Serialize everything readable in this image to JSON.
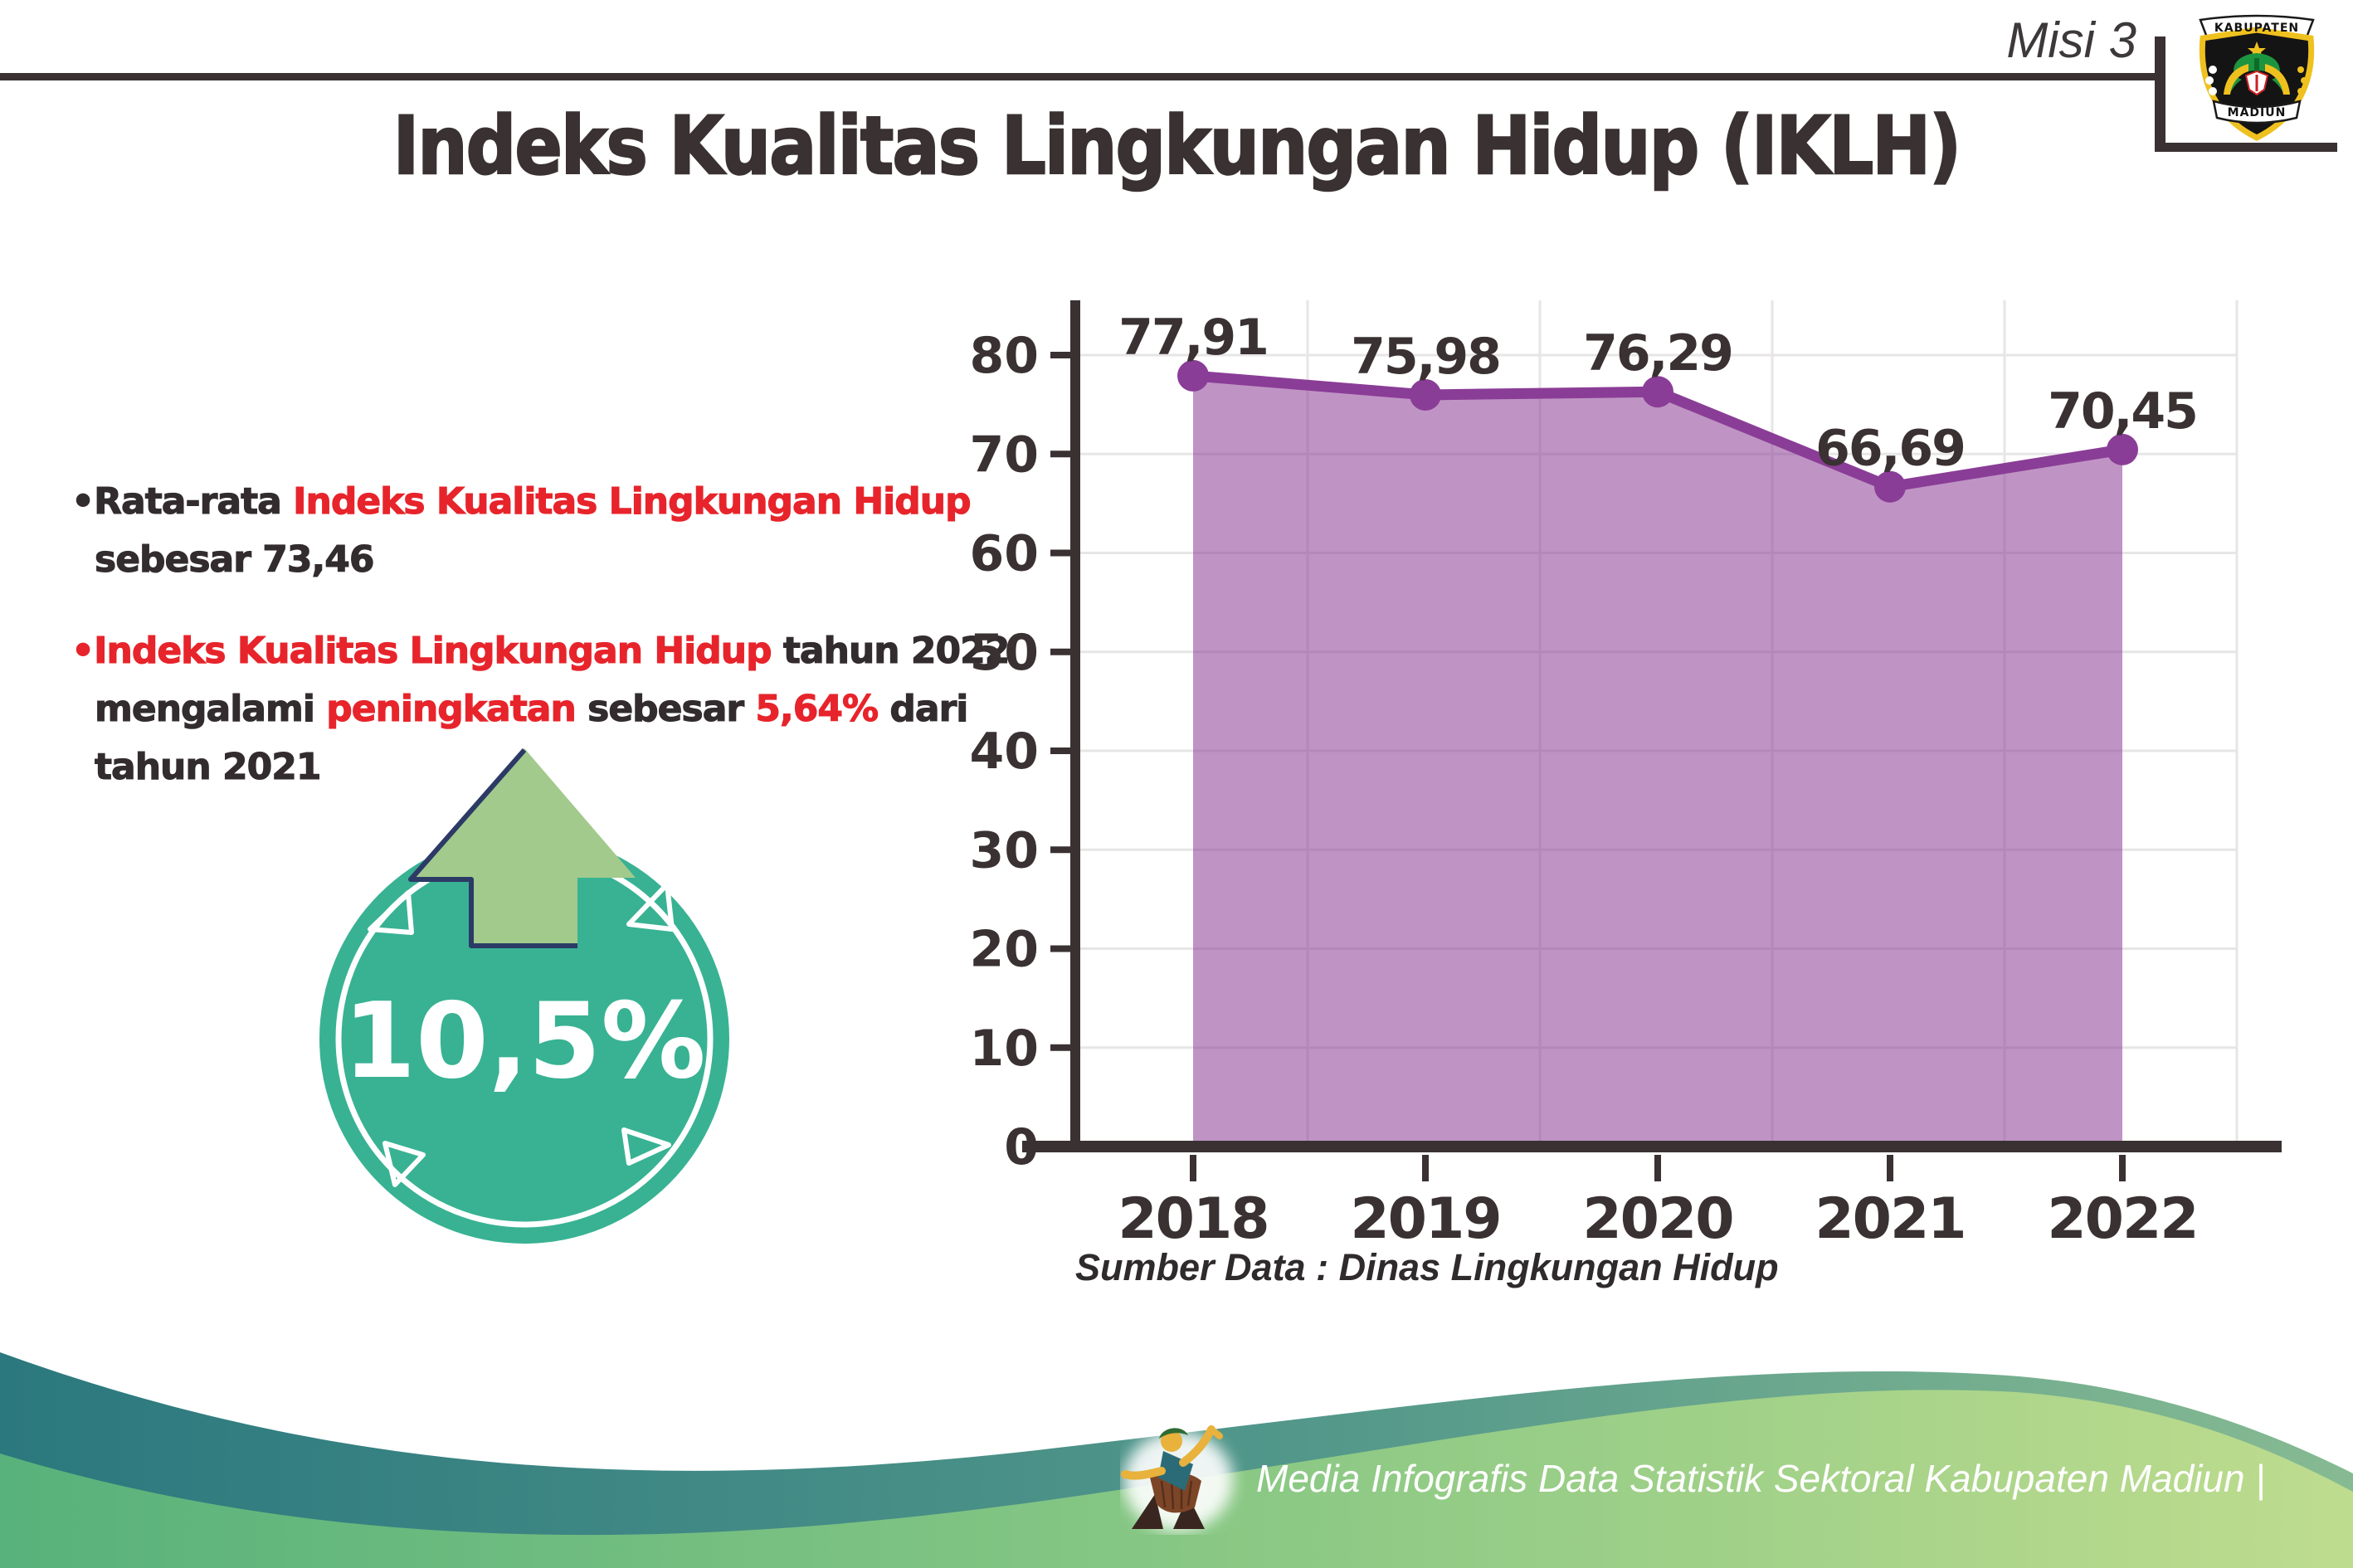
{
  "header": {
    "misi_label": "Misi 3",
    "logo": {
      "banner_top": "KABUPATEN",
      "banner_bottom": "MADIUN"
    }
  },
  "title": "Indeks Kualitas Lingkungan Hidup (IKLH)",
  "colors": {
    "dark_text": "#332c2e",
    "red_text": "#e7242b",
    "badge_teal": "#38b293",
    "arrow_green": "#a2ca8c",
    "arrow_outline": "#2c3a66"
  },
  "bullets": [
    {
      "marker": "•",
      "marker_color": "dark",
      "lines": [
        [
          {
            "t": "Rata-rata ",
            "c": "dark"
          },
          {
            "t": "Indeks Kualitas Lingkungan Hidup",
            "c": "red"
          }
        ],
        [
          {
            "t": "sebesar 73,46",
            "c": "dark"
          }
        ]
      ]
    },
    {
      "marker": "•",
      "marker_color": "red",
      "lines": [
        [
          {
            "t": "Indeks Kualitas Lingkungan Hidup",
            "c": "red"
          },
          {
            "t": " tahun 2022",
            "c": "dark"
          }
        ],
        [
          {
            "t": "mengalami ",
            "c": "dark"
          },
          {
            "t": "peningkatan",
            "c": "red"
          },
          {
            "t": " sebesar ",
            "c": "dark"
          },
          {
            "t": "5,64%",
            "c": "red"
          },
          {
            "t": " dari",
            "c": "dark"
          }
        ],
        [
          {
            "t": "tahun 2021",
            "c": "dark"
          }
        ]
      ]
    }
  ],
  "badge": {
    "value": "10,5%"
  },
  "chart_data": {
    "type": "area",
    "categories": [
      "2018",
      "2019",
      "2020",
      "2021",
      "2022"
    ],
    "values": [
      77.91,
      75.98,
      76.29,
      66.69,
      70.45
    ],
    "value_labels": [
      "77,91",
      "75,98",
      "76,29",
      "66,69",
      "70,45"
    ],
    "title": "",
    "xlabel": "",
    "ylabel": "",
    "ylim": [
      0,
      85
    ],
    "yticks": [
      0,
      10,
      20,
      30,
      40,
      50,
      60,
      70,
      80
    ],
    "grid": true,
    "legend": false,
    "line_color": "#8a3d96",
    "fill_color": "rgba(138,61,150,0.55)",
    "axis_color": "#3a3132",
    "gridline_color": "#e7e5e6",
    "label_color": "#3a3132"
  },
  "source_note": "Sumber Data : Dinas Lingkungan Hidup",
  "footer": {
    "caption": "Media Infografis Data Statistik Sektoral Kabupaten Madiun |"
  }
}
